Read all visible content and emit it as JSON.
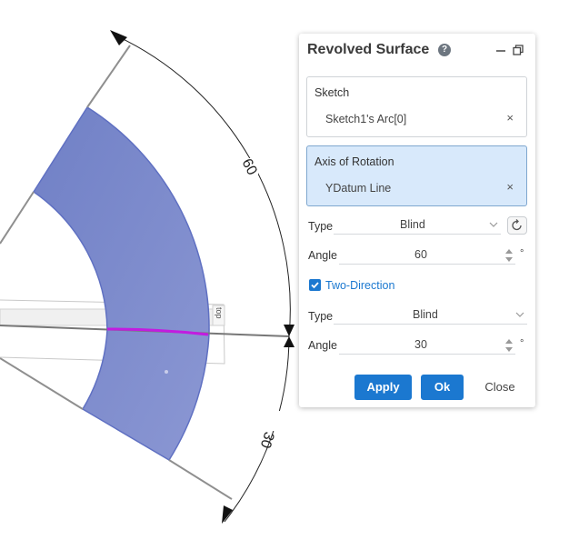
{
  "viewport": {
    "dimension_60": "60",
    "dimension_30": "30",
    "plane_tag": "top"
  },
  "panel": {
    "title": "Revolved Surface",
    "help_glyph": "?",
    "sketch": {
      "label": "Sketch",
      "value": "Sketch1's Arc[0]",
      "clear": "×",
      "marker_color": "#c21ce0"
    },
    "axis": {
      "label": "Axis of Rotation",
      "value": "YDatum Line",
      "clear": "×",
      "marker_color": "#1ec21e"
    },
    "direction1": {
      "type_label": "Type",
      "type_value": "Blind",
      "angle_label": "Angle",
      "angle_value": "60",
      "unit": "°"
    },
    "two_direction": {
      "label": "Two-Direction",
      "checked": true
    },
    "direction2": {
      "type_label": "Type",
      "type_value": "Blind",
      "angle_label": "Angle",
      "angle_value": "30",
      "unit": "°"
    },
    "buttons": {
      "apply": "Apply",
      "ok": "Ok",
      "close": "Close"
    }
  },
  "colors": {
    "accent": "#1b78d0",
    "surface_fill": "#7b89cc",
    "surface_edge": "#5a6bc0",
    "highlight_arc": "#c21ce0"
  }
}
